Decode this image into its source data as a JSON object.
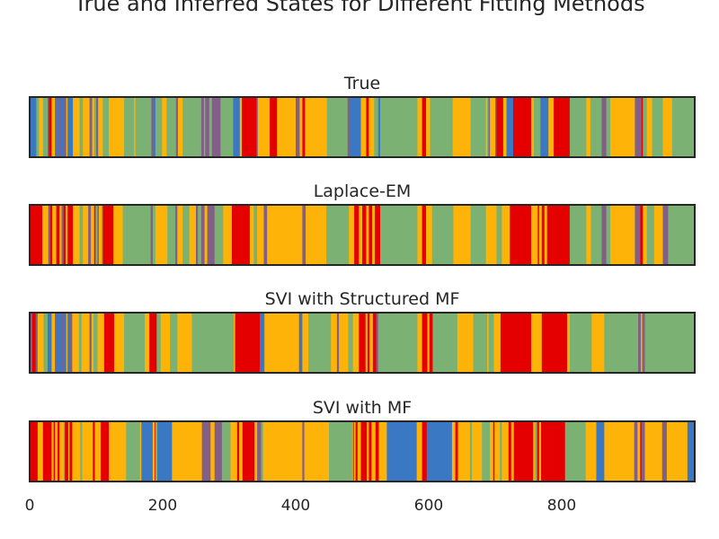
{
  "figure": {
    "title": "True and Inferred States for Different Fitting Methods"
  },
  "palette": {
    "blue": "#3a78c3",
    "red": "#e50000",
    "amber": "#feb308",
    "green": "#7bb274",
    "purple": "#825f87"
  },
  "chart_data": [
    {
      "type": "heatmap",
      "title": "True",
      "xlim": [
        0,
        1000
      ],
      "grid": false,
      "segments": [
        [
          0,
          "blue"
        ],
        [
          10,
          "green"
        ],
        [
          14,
          "amber"
        ],
        [
          20,
          "green"
        ],
        [
          27,
          "purple"
        ],
        [
          29,
          "red"
        ],
        [
          33,
          "amber"
        ],
        [
          38,
          "purple"
        ],
        [
          40,
          "blue"
        ],
        [
          44,
          "purple"
        ],
        [
          47,
          "blue"
        ],
        [
          51,
          "purple"
        ],
        [
          55,
          "amber"
        ],
        [
          57,
          "blue"
        ],
        [
          65,
          "amber"
        ],
        [
          75,
          "green"
        ],
        [
          80,
          "amber"
        ],
        [
          90,
          "purple"
        ],
        [
          94,
          "amber"
        ],
        [
          97,
          "green"
        ],
        [
          100,
          "purple"
        ],
        [
          103,
          "amber"
        ],
        [
          110,
          "green"
        ],
        [
          119,
          "amber"
        ],
        [
          142,
          "green"
        ],
        [
          157,
          "amber"
        ],
        [
          159,
          "green"
        ],
        [
          183,
          "purple"
        ],
        [
          186,
          "blue"
        ],
        [
          189,
          "green"
        ],
        [
          199,
          "amber"
        ],
        [
          206,
          "green"
        ],
        [
          220,
          "purple"
        ],
        [
          223,
          "amber"
        ],
        [
          230,
          "green"
        ],
        [
          258,
          "purple"
        ],
        [
          262,
          "green"
        ],
        [
          264,
          "purple"
        ],
        [
          270,
          "green"
        ],
        [
          274,
          "purple"
        ],
        [
          287,
          "green"
        ],
        [
          306,
          "blue"
        ],
        [
          316,
          "amber"
        ],
        [
          319,
          "red"
        ],
        [
          341,
          "purple"
        ],
        [
          343,
          "amber"
        ],
        [
          361,
          "red"
        ],
        [
          372,
          "amber"
        ],
        [
          400,
          "purple"
        ],
        [
          406,
          "amber"
        ],
        [
          410,
          "red"
        ],
        [
          414,
          "amber"
        ],
        [
          447,
          "green"
        ],
        [
          478,
          "purple"
        ],
        [
          481,
          "blue"
        ],
        [
          498,
          "amber"
        ],
        [
          506,
          "red"
        ],
        [
          510,
          "amber"
        ],
        [
          518,
          "green"
        ],
        [
          524,
          "blue"
        ],
        [
          527,
          "green"
        ],
        [
          583,
          "amber"
        ],
        [
          590,
          "red"
        ],
        [
          596,
          "amber"
        ],
        [
          602,
          "green"
        ],
        [
          636,
          "amber"
        ],
        [
          663,
          "green"
        ],
        [
          686,
          "amber"
        ],
        [
          688,
          "green"
        ],
        [
          690,
          "purple"
        ],
        [
          692,
          "amber"
        ],
        [
          700,
          "purple"
        ],
        [
          702,
          "red"
        ],
        [
          712,
          "amber"
        ],
        [
          717,
          "blue"
        ],
        [
          727,
          "red"
        ],
        [
          754,
          "amber"
        ],
        [
          758,
          "green"
        ],
        [
          768,
          "blue"
        ],
        [
          780,
          "amber"
        ],
        [
          788,
          "red"
        ],
        [
          812,
          "green"
        ],
        [
          837,
          "amber"
        ],
        [
          843,
          "green"
        ],
        [
          860,
          "purple"
        ],
        [
          867,
          "green"
        ],
        [
          873,
          "amber"
        ],
        [
          910,
          "purple"
        ],
        [
          920,
          "red"
        ],
        [
          922,
          "green"
        ],
        [
          928,
          "amber"
        ],
        [
          936,
          "green"
        ],
        [
          952,
          "amber"
        ],
        [
          966,
          "green"
        ]
      ]
    },
    {
      "type": "heatmap",
      "title": "Laplace-EM",
      "xlim": [
        0,
        1000
      ],
      "grid": false,
      "segments": [
        [
          0,
          "red"
        ],
        [
          19,
          "amber"
        ],
        [
          28,
          "purple"
        ],
        [
          31,
          "red"
        ],
        [
          34,
          "amber"
        ],
        [
          40,
          "red"
        ],
        [
          45,
          "amber"
        ],
        [
          48,
          "purple"
        ],
        [
          51,
          "red"
        ],
        [
          54,
          "amber"
        ],
        [
          57,
          "red"
        ],
        [
          65,
          "amber"
        ],
        [
          75,
          "green"
        ],
        [
          80,
          "amber"
        ],
        [
          88,
          "purple"
        ],
        [
          92,
          "amber"
        ],
        [
          97,
          "red"
        ],
        [
          99,
          "green"
        ],
        [
          102,
          "purple"
        ],
        [
          104,
          "amber"
        ],
        [
          108,
          "green"
        ],
        [
          110,
          "red"
        ],
        [
          126,
          "amber"
        ],
        [
          140,
          "green"
        ],
        [
          182,
          "purple"
        ],
        [
          185,
          "green"
        ],
        [
          189,
          "amber"
        ],
        [
          207,
          "green"
        ],
        [
          219,
          "purple"
        ],
        [
          222,
          "amber"
        ],
        [
          230,
          "green"
        ],
        [
          240,
          "amber"
        ],
        [
          250,
          "purple"
        ],
        [
          253,
          "green"
        ],
        [
          258,
          "purple"
        ],
        [
          263,
          "amber"
        ],
        [
          267,
          "purple"
        ],
        [
          278,
          "green"
        ],
        [
          291,
          "amber"
        ],
        [
          304,
          "red"
        ],
        [
          331,
          "amber"
        ],
        [
          337,
          "green"
        ],
        [
          342,
          "amber"
        ],
        [
          352,
          "purple"
        ],
        [
          357,
          "amber"
        ],
        [
          410,
          "purple"
        ],
        [
          415,
          "amber"
        ],
        [
          446,
          "green"
        ],
        [
          480,
          "amber"
        ],
        [
          488,
          "red"
        ],
        [
          495,
          "amber"
        ],
        [
          500,
          "red"
        ],
        [
          506,
          "amber"
        ],
        [
          510,
          "red"
        ],
        [
          515,
          "amber"
        ],
        [
          519,
          "red"
        ],
        [
          527,
          "green"
        ],
        [
          583,
          "amber"
        ],
        [
          590,
          "red"
        ],
        [
          596,
          "amber"
        ],
        [
          605,
          "green"
        ],
        [
          637,
          "amber"
        ],
        [
          663,
          "green"
        ],
        [
          686,
          "amber"
        ],
        [
          702,
          "green"
        ],
        [
          710,
          "amber"
        ],
        [
          722,
          "red"
        ],
        [
          754,
          "amber"
        ],
        [
          764,
          "red"
        ],
        [
          766,
          "amber"
        ],
        [
          770,
          "red"
        ],
        [
          774,
          "amber"
        ],
        [
          778,
          "red"
        ],
        [
          812,
          "green"
        ],
        [
          837,
          "amber"
        ],
        [
          844,
          "green"
        ],
        [
          860,
          "purple"
        ],
        [
          867,
          "green"
        ],
        [
          873,
          "amber"
        ],
        [
          910,
          "purple"
        ],
        [
          918,
          "red"
        ],
        [
          922,
          "amber"
        ],
        [
          928,
          "green"
        ],
        [
          939,
          "amber"
        ],
        [
          952,
          "purple"
        ],
        [
          960,
          "green"
        ]
      ]
    },
    {
      "type": "heatmap",
      "title": "SVI with Structured MF",
      "xlim": [
        0,
        1000
      ],
      "grid": false,
      "segments": [
        [
          0,
          "purple"
        ],
        [
          4,
          "red"
        ],
        [
          9,
          "purple"
        ],
        [
          12,
          "amber"
        ],
        [
          21,
          "green"
        ],
        [
          27,
          "blue"
        ],
        [
          33,
          "amber"
        ],
        [
          38,
          "purple"
        ],
        [
          40,
          "blue"
        ],
        [
          48,
          "purple"
        ],
        [
          51,
          "blue"
        ],
        [
          55,
          "amber"
        ],
        [
          57,
          "blue"
        ],
        [
          61,
          "purple"
        ],
        [
          64,
          "amber"
        ],
        [
          74,
          "green"
        ],
        [
          78,
          "amber"
        ],
        [
          90,
          "purple"
        ],
        [
          93,
          "amber"
        ],
        [
          96,
          "green"
        ],
        [
          102,
          "amber"
        ],
        [
          112,
          "red"
        ],
        [
          127,
          "amber"
        ],
        [
          142,
          "green"
        ],
        [
          173,
          "amber"
        ],
        [
          180,
          "red"
        ],
        [
          191,
          "green"
        ],
        [
          197,
          "amber"
        ],
        [
          211,
          "green"
        ],
        [
          222,
          "amber"
        ],
        [
          244,
          "green"
        ],
        [
          307,
          "amber"
        ],
        [
          309,
          "red"
        ],
        [
          346,
          "blue"
        ],
        [
          353,
          "amber"
        ],
        [
          405,
          "purple"
        ],
        [
          407,
          "blue"
        ],
        [
          410,
          "amber"
        ],
        [
          419,
          "green"
        ],
        [
          453,
          "amber"
        ],
        [
          462,
          "purple"
        ],
        [
          465,
          "amber"
        ],
        [
          479,
          "green"
        ],
        [
          486,
          "amber"
        ],
        [
          495,
          "red"
        ],
        [
          505,
          "amber"
        ],
        [
          508,
          "red"
        ],
        [
          511,
          "amber"
        ],
        [
          516,
          "red"
        ],
        [
          521,
          "purple"
        ],
        [
          524,
          "green"
        ],
        [
          583,
          "amber"
        ],
        [
          590,
          "red"
        ],
        [
          598,
          "amber"
        ],
        [
          601,
          "red"
        ],
        [
          606,
          "green"
        ],
        [
          643,
          "amber"
        ],
        [
          667,
          "green"
        ],
        [
          688,
          "amber"
        ],
        [
          690,
          "green"
        ],
        [
          698,
          "amber"
        ],
        [
          708,
          "red"
        ],
        [
          754,
          "amber"
        ],
        [
          770,
          "red"
        ],
        [
          808,
          "amber"
        ],
        [
          812,
          "green"
        ],
        [
          845,
          "amber"
        ],
        [
          864,
          "green"
        ],
        [
          915,
          "purple"
        ],
        [
          919,
          "amber"
        ],
        [
          921,
          "purple"
        ],
        [
          925,
          "green"
        ]
      ]
    },
    {
      "type": "heatmap",
      "title": "SVI with MF",
      "xlim": [
        0,
        1000
      ],
      "grid": false,
      "segments": [
        [
          0,
          "red"
        ],
        [
          12,
          "amber"
        ],
        [
          20,
          "red"
        ],
        [
          33,
          "amber"
        ],
        [
          36,
          "red"
        ],
        [
          38,
          "amber"
        ],
        [
          42,
          "red"
        ],
        [
          45,
          "amber"
        ],
        [
          51,
          "green"
        ],
        [
          53,
          "red"
        ],
        [
          58,
          "amber"
        ],
        [
          60,
          "red"
        ],
        [
          64,
          "amber"
        ],
        [
          76,
          "green"
        ],
        [
          79,
          "amber"
        ],
        [
          95,
          "red"
        ],
        [
          98,
          "amber"
        ],
        [
          107,
          "red"
        ],
        [
          119,
          "amber"
        ],
        [
          145,
          "green"
        ],
        [
          166,
          "amber"
        ],
        [
          168,
          "blue"
        ],
        [
          185,
          "amber"
        ],
        [
          188,
          "red"
        ],
        [
          189,
          "green"
        ],
        [
          192,
          "blue"
        ],
        [
          214,
          "amber"
        ],
        [
          259,
          "purple"
        ],
        [
          272,
          "amber"
        ],
        [
          278,
          "purple"
        ],
        [
          289,
          "green"
        ],
        [
          302,
          "amber"
        ],
        [
          312,
          "red"
        ],
        [
          315,
          "amber"
        ],
        [
          320,
          "red"
        ],
        [
          338,
          "amber"
        ],
        [
          342,
          "purple"
        ],
        [
          348,
          "green"
        ],
        [
          351,
          "amber"
        ],
        [
          410,
          "purple"
        ],
        [
          413,
          "amber"
        ],
        [
          450,
          "green"
        ],
        [
          485,
          "amber"
        ],
        [
          486,
          "purple"
        ],
        [
          488,
          "amber"
        ],
        [
          490,
          "red"
        ],
        [
          493,
          "amber"
        ],
        [
          498,
          "red"
        ],
        [
          507,
          "amber"
        ],
        [
          510,
          "red"
        ],
        [
          514,
          "amber"
        ],
        [
          520,
          "red"
        ],
        [
          525,
          "amber"
        ],
        [
          537,
          "blue"
        ],
        [
          582,
          "amber"
        ],
        [
          590,
          "red"
        ],
        [
          597,
          "blue"
        ],
        [
          635,
          "amber"
        ],
        [
          640,
          "red"
        ],
        [
          644,
          "amber"
        ],
        [
          662,
          "green"
        ],
        [
          665,
          "amber"
        ],
        [
          680,
          "green"
        ],
        [
          692,
          "amber"
        ],
        [
          697,
          "red"
        ],
        [
          699,
          "amber"
        ],
        [
          707,
          "green"
        ],
        [
          710,
          "amber"
        ],
        [
          720,
          "red"
        ],
        [
          724,
          "amber"
        ],
        [
          728,
          "red"
        ],
        [
          757,
          "amber"
        ],
        [
          760,
          "green"
        ],
        [
          763,
          "red"
        ],
        [
          766,
          "amber"
        ],
        [
          769,
          "red"
        ],
        [
          805,
          "green"
        ],
        [
          836,
          "amber"
        ],
        [
          852,
          "blue"
        ],
        [
          864,
          "amber"
        ],
        [
          909,
          "purple"
        ],
        [
          914,
          "amber"
        ],
        [
          918,
          "red"
        ],
        [
          920,
          "purple"
        ],
        [
          925,
          "amber"
        ],
        [
          951,
          "purple"
        ],
        [
          958,
          "amber"
        ],
        [
          989,
          "blue"
        ]
      ]
    }
  ],
  "x_axis": {
    "ticks": [
      0,
      200,
      400,
      600,
      800
    ],
    "tick_labels": [
      "0",
      "200",
      "400",
      "600",
      "800"
    ]
  }
}
